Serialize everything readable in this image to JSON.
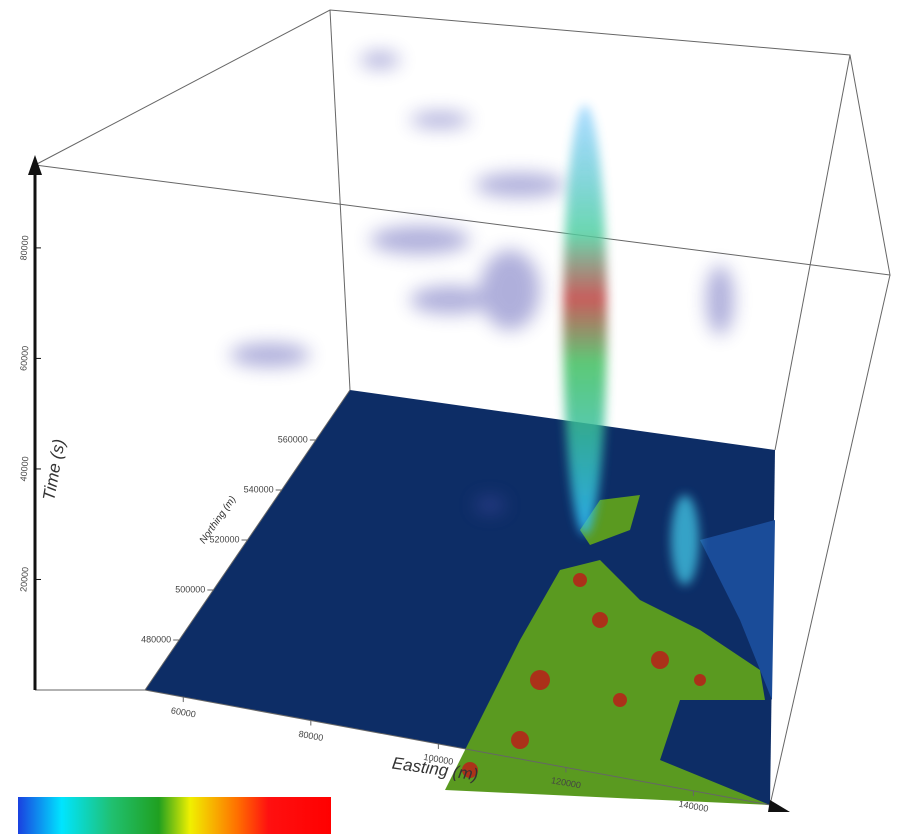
{
  "chart_data": {
    "type": "volume3d",
    "x_label": "Easting (m)",
    "y_label": "Northing (m)",
    "z_label": "Time (s)",
    "xlim": [
      54000,
      152000
    ],
    "xticks": [
      60000,
      80000,
      100000,
      120000,
      140000
    ],
    "ylim": [
      460000,
      580000
    ],
    "yticks": [
      480000,
      500000,
      520000,
      540000,
      560000
    ],
    "zlim": [
      0,
      95000
    ],
    "zticks": [
      20000,
      40000,
      60000,
      80000
    ]
  }
}
